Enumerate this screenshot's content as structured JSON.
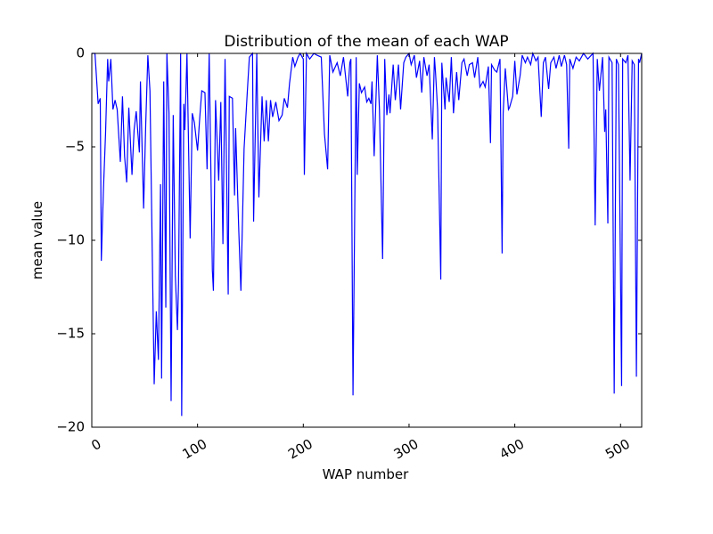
{
  "chart_data": {
    "type": "line",
    "title": "Distribution of the mean of each WAP",
    "x_label": "WAP number",
    "y_label": "mean value",
    "xlim": [
      0,
      520
    ],
    "ylim": [
      -20,
      0
    ],
    "xticks": [
      0,
      100,
      200,
      300,
      400,
      500
    ],
    "yticks": [
      0,
      {
        "value": -5,
        "label": "−5"
      },
      {
        "value": -10,
        "label": "−10"
      },
      {
        "value": -15,
        "label": "−15"
      },
      {
        "value": -20,
        "label": "−20"
      }
    ],
    "grid": false,
    "x": [
      0,
      3,
      6,
      8,
      9,
      11,
      13,
      15,
      16,
      18,
      20,
      22,
      24,
      27,
      29,
      31,
      33,
      35,
      38,
      40,
      42,
      45,
      46,
      49,
      51,
      53,
      55,
      57,
      59,
      61,
      63,
      65,
      66,
      68,
      70,
      71,
      73,
      75,
      77,
      79,
      81,
      82,
      84,
      85,
      87,
      88,
      90,
      93,
      95,
      97,
      100,
      102,
      104,
      107,
      109,
      111,
      114,
      115,
      117,
      120,
      122,
      124,
      126,
      129,
      130,
      133,
      135,
      136,
      139,
      141,
      144,
      147,
      149,
      152,
      153,
      156,
      158,
      161,
      163,
      165,
      167,
      169,
      171,
      174,
      177,
      180,
      182,
      185,
      187,
      190,
      192,
      195,
      197,
      200,
      201,
      203,
      206,
      210,
      213,
      217,
      220,
      223,
      225,
      228,
      232,
      235,
      238,
      242,
      244,
      245,
      247,
      250,
      251,
      253,
      255,
      258,
      260,
      262,
      264,
      265,
      267,
      270,
      272,
      275,
      277,
      279,
      281,
      282,
      285,
      287,
      290,
      292,
      295,
      297,
      300,
      302,
      305,
      307,
      310,
      312,
      314,
      317,
      319,
      322,
      324,
      325,
      327,
      330,
      331,
      334,
      335,
      338,
      340,
      342,
      345,
      347,
      350,
      352,
      355,
      357,
      360,
      362,
      365,
      367,
      370,
      372,
      375,
      377,
      378,
      381,
      383,
      386,
      388,
      389,
      391,
      394,
      395,
      398,
      400,
      402,
      405,
      407,
      410,
      412,
      415,
      417,
      420,
      422,
      425,
      427,
      429,
      432,
      434,
      437,
      439,
      442,
      444,
      447,
      449,
      451,
      452,
      455,
      458,
      461,
      465,
      469,
      474,
      476,
      478,
      480,
      483,
      485,
      486,
      488,
      489,
      492,
      494,
      496,
      498,
      501,
      502,
      505,
      507,
      509,
      511,
      513,
      515,
      517,
      518,
      520
    ],
    "series": [
      {
        "name": "mean",
        "color": "#0000ff",
        "values": [
          0,
          0,
          -2.7,
          -2.4,
          -11.1,
          -7.3,
          -4.3,
          -0.3,
          -1.5,
          -0.3,
          -3,
          -2.5,
          -3,
          -5.8,
          -2.3,
          -5.5,
          -6.9,
          -2.9,
          -6.5,
          -4.1,
          -3.1,
          -5.3,
          -1.5,
          -8.3,
          -3.8,
          -0.1,
          -2,
          -10,
          -17.7,
          -13.8,
          -16.4,
          -7,
          -17.4,
          -1.5,
          -13.6,
          0,
          -3.2,
          -18.6,
          -3.3,
          -11.9,
          -14.8,
          -12.3,
          0,
          -19.4,
          -2.7,
          -4.1,
          0,
          -9.9,
          -3.2,
          -3.7,
          -5.2,
          -3.5,
          -2,
          -2.1,
          -6.2,
          0,
          -11.6,
          -12.7,
          -2.5,
          -6.8,
          -2.6,
          -10.2,
          -0.3,
          -12.9,
          -2.3,
          -2.4,
          -7.6,
          -4,
          -9.5,
          -12.7,
          -5.1,
          -2.1,
          -0.2,
          0,
          -9,
          0,
          -7.7,
          -2.3,
          -4.7,
          -2.5,
          -4.7,
          -2.5,
          -3.4,
          -2.6,
          -3.6,
          -3.3,
          -2.4,
          -2.9,
          -1.6,
          -0.2,
          -0.7,
          -0.2,
          0,
          -0.3,
          -6.5,
          0,
          -0.3,
          0,
          -0.1,
          -0.2,
          -4.3,
          -6.2,
          -0.1,
          -1,
          -0.5,
          -1.2,
          -0.2,
          -2.3,
          -0.5,
          -0.3,
          -18.3,
          -0.2,
          -6.5,
          -1.6,
          -2.1,
          -1.8,
          -2.6,
          -2.4,
          -2.7,
          -1.5,
          -5.5,
          -0.1,
          -3,
          -11,
          -0.3,
          -3.3,
          -2.2,
          -3.2,
          -0.6,
          -2.5,
          -0.6,
          -3,
          -0.5,
          -0.2,
          0,
          -0.6,
          -0.1,
          -1.3,
          -0.4,
          -2.1,
          -0.2,
          -1.2,
          -0.6,
          -4.6,
          -0.2,
          -1,
          -3,
          -12.1,
          -0.5,
          -3,
          -1.3,
          -2.6,
          -0.2,
          -3.2,
          -1,
          -2.5,
          -0.5,
          -0.3,
          -1.2,
          -0.6,
          -0.5,
          -1.3,
          -0.2,
          -1.8,
          -1.5,
          -1.8,
          -0.7,
          -4.8,
          -0.6,
          -0.9,
          -1,
          -0.3,
          -10.7,
          -3.2,
          -0.8,
          -3,
          -2.9,
          -2.3,
          -0.4,
          -2.2,
          -1.2,
          -0.1,
          -0.5,
          -0.2,
          -0.6,
          0,
          -0.4,
          -0.2,
          -3.4,
          -0.5,
          -0.2,
          -1.9,
          -0.5,
          -0.2,
          -0.8,
          -0.1,
          -0.7,
          -0.1,
          -0.6,
          -5.1,
          -0.3,
          -0.8,
          -0.2,
          -0.4,
          0,
          -0.3,
          0,
          -9.2,
          -0.3,
          -2,
          -0.2,
          -4.2,
          -3,
          -9.1,
          -0.2,
          -0.5,
          -18.2,
          -0.3,
          -0.6,
          -17.8,
          -0.3,
          -0.5,
          -0.1,
          -6.8,
          -0.4,
          -0.6,
          -17.3,
          -0.3,
          -0.5,
          0
        ]
      }
    ]
  }
}
